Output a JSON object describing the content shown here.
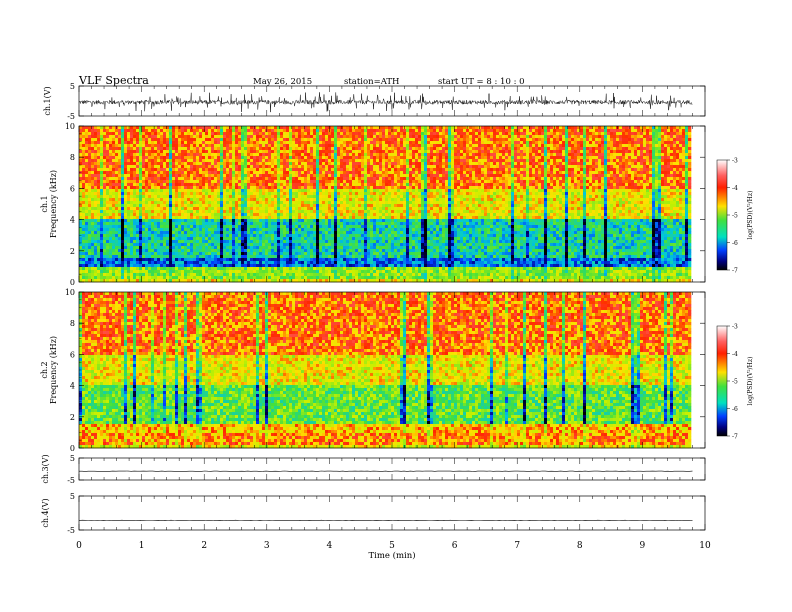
{
  "header": {
    "title": "VLF  Spectra",
    "date": "May 26, 2015",
    "station": "station=ATH",
    "start": "start  UT  =   8  : 10 : 0"
  },
  "chart_data": [
    {
      "type": "line",
      "name": "ch1-waveform",
      "ylabel": "ch.1(V)",
      "ylim": [
        -5,
        5
      ],
      "yticks": [
        "5",
        "-5"
      ],
      "xlim": [
        0,
        10
      ],
      "note": "dense noisy waveform approximately -2 to +1 V"
    },
    {
      "type": "heatmap",
      "name": "ch1-spectrogram",
      "ylabel": "ch.1\nFrequency  (kHz)",
      "ylabel_lines": [
        "ch.1",
        "Frequency  (kHz)"
      ],
      "ylim": [
        0,
        10
      ],
      "yticks": [
        "0",
        "2",
        "4",
        "6",
        "8",
        "10"
      ],
      "xlim": [
        0,
        9.8
      ],
      "colorbar": {
        "label": "log(PSD)(V²/Hz)",
        "range": [
          -7,
          -3
        ],
        "ticks": [
          "-3",
          "-4",
          "-5",
          "-6",
          "-7"
        ]
      }
    },
    {
      "type": "heatmap",
      "name": "ch2-spectrogram",
      "ylabel_lines": [
        "ch.2",
        "Frequency  (kHz)"
      ],
      "ylim": [
        0,
        10
      ],
      "yticks": [
        "0",
        "2",
        "4",
        "6",
        "8",
        "10"
      ],
      "xlim": [
        0,
        9.8
      ],
      "colorbar": {
        "label": "log(PSD)(V²/Hz)",
        "range": [
          -7,
          -3
        ],
        "ticks": [
          "-3",
          "-4",
          "-5",
          "-6",
          "-7"
        ]
      }
    },
    {
      "type": "line",
      "name": "ch3-waveform",
      "ylabel": "ch.3(V)",
      "ylim": [
        -5,
        5
      ],
      "yticks": [
        "5",
        "-5"
      ],
      "note": "flat line near -1 V"
    },
    {
      "type": "line",
      "name": "ch4-waveform",
      "ylabel": "ch.4(V)",
      "ylim": [
        -5,
        5
      ],
      "yticks": [
        "5",
        "-5"
      ],
      "note": "flat line near -2 V"
    }
  ],
  "xaxis": {
    "label": "Time  (min)",
    "range": [
      0,
      10
    ],
    "ticks": [
      "0",
      "1",
      "2",
      "3",
      "4",
      "5",
      "6",
      "7",
      "8",
      "9",
      "10"
    ]
  }
}
